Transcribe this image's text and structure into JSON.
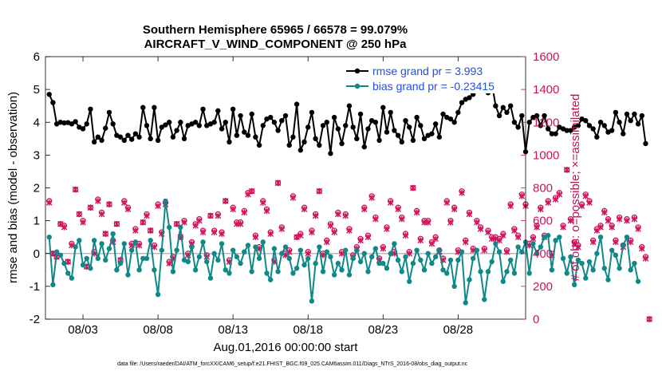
{
  "chart_data": {
    "type": "line",
    "title": "Southern Hemisphere 65965 / 66578 = 99.079%",
    "subtitle": "AIRCRAFT_V_WIND_COMPONENT @ 250 hPa",
    "xlabel": "Aug.01,2016 00:00:00 start",
    "ylabel": "rmse and bias (model - observation)",
    "y2label": "# of obs: o=possible; ×=assimilated",
    "xlim": [
      0.5,
      32.5
    ],
    "ylim": [
      -2,
      6
    ],
    "y2lim": [
      0,
      1600
    ],
    "x_ticks": [
      {
        "x": 3,
        "label": "08/03"
      },
      {
        "x": 8,
        "label": "08/08"
      },
      {
        "x": 13,
        "label": "08/13"
      },
      {
        "x": 18,
        "label": "08/18"
      },
      {
        "x": 23,
        "label": "08/23"
      },
      {
        "x": 28,
        "label": "08/28"
      }
    ],
    "y_ticks": [
      "-2",
      "-1",
      "0",
      "1",
      "2",
      "3",
      "4",
      "5",
      "6"
    ],
    "y2_ticks": [
      "0",
      "200",
      "400",
      "600",
      "800",
      "1000",
      "1200",
      "1400",
      "1600"
    ],
    "footnote": "data file: /Users/raeder/DAI/ATM_forcXX/CAM6_setup/f.e21.FHIST_BGC.f09_025.CAM6assim.011/Diags_NTrS_2016-08/obs_diag_output.nc",
    "colors": {
      "rmse": "#000000",
      "bias": "#108888",
      "obs": "#d0105a",
      "ylabel2": "#c0105a",
      "zero_line": "#b8b8b8",
      "legend_text": "#1f50e0"
    },
    "series": [
      {
        "name": "rmse",
        "legend": "rmse grand pr = 3.993",
        "values": [
          4.85,
          4.6,
          3.95,
          4.0,
          3.98,
          3.99,
          3.95,
          4.02,
          3.85,
          3.8,
          3.95,
          4.4,
          3.4,
          3.55,
          3.45,
          3.82,
          4.3,
          3.95,
          3.6,
          3.55,
          3.45,
          3.6,
          3.48,
          3.65,
          3.55,
          4.45,
          3.9,
          3.5,
          4.45,
          3.45,
          3.85,
          3.92,
          4.0,
          3.55,
          3.75,
          4.0,
          3.5,
          3.9,
          3.95,
          4.0,
          3.9,
          4.4,
          3.9,
          3.95,
          4.0,
          4.35,
          3.8,
          4.0,
          3.4,
          4.4,
          3.6,
          4.2,
          3.7,
          3.6,
          4.25,
          3.55,
          3.3,
          3.9,
          4.1,
          4.15,
          4.0,
          3.75,
          4.05,
          4.2,
          3.3,
          3.55,
          4.55,
          3.15,
          3.4,
          3.85,
          4.3,
          3.5,
          3.3,
          3.9,
          4.0,
          3.05,
          4.15,
          3.8,
          3.35,
          3.9,
          4.5,
          3.85,
          3.5,
          4.25,
          3.25,
          3.8,
          4.05,
          4.0,
          3.45,
          4.45,
          3.7,
          4.3,
          3.75,
          3.6,
          3.4,
          4.05,
          3.85,
          3.45,
          4.15,
          3.9,
          3.5,
          3.6,
          3.65,
          3.95,
          3.55,
          4.25,
          4.15,
          4.1,
          4.0,
          4.3,
          4.6,
          4.7,
          4.75,
          4.85,
          5.5,
          5.05,
          5.5,
          4.9,
          5.2,
          4.5,
          4.2,
          4.45,
          4.3,
          4.5,
          4.0,
          3.85,
          4.2,
          3.1,
          4.0,
          4.15,
          4.2,
          3.9,
          4.2,
          3.8,
          3.65,
          3.65,
          3.85,
          3.8,
          3.75,
          3.75,
          3.85,
          3.9,
          4.1,
          4.05,
          3.9,
          3.8,
          3.55,
          4.0,
          3.9,
          3.7,
          3.75,
          4.3,
          4.0,
          3.65,
          4.25,
          4.05,
          4.25,
          3.95,
          4.2,
          3.35
        ]
      },
      {
        "name": "bias",
        "legend": "bias grand pr = -0.23415",
        "values": [
          0.5,
          -0.95,
          0.05,
          -0.05,
          -0.3,
          -0.6,
          -0.75,
          0.2,
          0.4,
          -0.35,
          -0.15,
          -0.45,
          0.4,
          -0.15,
          0.3,
          -0.2,
          0.15,
          0.6,
          -0.5,
          -0.3,
          0.3,
          -0.65,
          0.1,
          0.35,
          -0.5,
          -0.15,
          -0.15,
          0.4,
          -0.5,
          -1.25,
          0.1,
          1.6,
          0.8,
          -0.55,
          0.1,
          0.8,
          -0.2,
          -0.25,
          0.2,
          -0.5,
          -0.1,
          0.35,
          -0.25,
          -0.75,
          0.0,
          -0.2,
          0.3,
          -0.5,
          -0.6,
          0.1,
          -0.1,
          -0.3,
          0.05,
          0.25,
          -0.55,
          0.2,
          -0.15,
          0.35,
          -0.6,
          -0.8,
          0.15,
          -0.55,
          0.0,
          0.2,
          -0.15,
          -0.6,
          -0.45,
          0.1,
          -0.35,
          -0.15,
          -1.45,
          -0.3,
          0.2,
          -0.55,
          0.05,
          -0.1,
          -0.65,
          -0.3,
          -0.5,
          0.1,
          -0.65,
          -0.15,
          0.1,
          -0.25,
          0.0,
          -0.55,
          -0.1,
          0.15,
          -0.3,
          -0.3,
          -0.45,
          0.0,
          0.3,
          -0.2,
          -0.55,
          -0.1,
          -0.85,
          -0.3,
          0.1,
          -0.2,
          -0.5,
          0.0,
          -0.3,
          -0.1,
          0.1,
          -0.5,
          -0.6,
          -0.2,
          -1.0,
          -0.2,
          0.05,
          -1.5,
          -0.8,
          -0.15,
          0.1,
          -0.55,
          -1.4,
          -0.55,
          -0.25,
          0.3,
          0.05,
          -0.85,
          -0.55,
          -0.2,
          -0.6,
          0.2,
          0.05,
          0.35,
          -0.6,
          0.3,
          0.0,
          0.2,
          0.5,
          0.55,
          -0.5,
          0.4,
          0.5,
          -0.15,
          -0.6,
          -0.1,
          -0.95,
          -0.2,
          -0.3,
          -0.75,
          -0.25,
          -0.5,
          0.0,
          0.5,
          -0.45,
          -0.8,
          0.1,
          -0.05,
          -0.45,
          0.25,
          0.5,
          -0.5,
          -0.3,
          -0.85
        ]
      },
      {
        "name": "obs_possible",
        "values": [
          720,
          400,
          380,
          580,
          570,
          350,
          460,
          790,
          640,
          600,
          320,
          680,
          410,
          730,
          650,
          520,
          700,
          480,
          580,
          360,
          720,
          680,
          460,
          550,
          460,
          590,
          640,
          540,
          450,
          700,
          530,
          710,
          350,
          380,
          580,
          500,
          600,
          400,
          470,
          580,
          610,
          540,
          390,
          630,
          540,
          640,
          530,
          720,
          360,
          680,
          590,
          590,
          660,
          770,
          780,
          510,
          440,
          720,
          670,
          530,
          360,
          830,
          560,
          400,
          420,
          750,
          500,
          520,
          680,
          410,
          540,
          640,
          780,
          400,
          480,
          580,
          540,
          650,
          410,
          640,
          550,
          390,
          440,
          490,
          680,
          510,
          750,
          620,
          370,
          440,
          560,
          720,
          410,
          680,
          620,
          520,
          410,
          800,
          660,
          490,
          600,
          600,
          470,
          500,
          420,
          370,
          720,
          600,
          680,
          420,
          780,
          480,
          650,
          430,
          600,
          560,
          430,
          540,
          500,
          500,
          490,
          520,
          420,
          700,
          550,
          510,
          760,
          700,
          460,
          500,
          570,
          680,
          510,
          720,
          400,
          740,
          770,
          570,
          910,
          610,
          470,
          450,
          700,
          760,
          720,
          480,
          550,
          570,
          660,
          610,
          570,
          480,
          620,
          450,
          610,
          480,
          620,
          560,
          440,
          380,
          0
        ]
      },
      {
        "name": "obs_assimilated",
        "values": [
          710,
          400,
          380,
          580,
          560,
          350,
          450,
          790,
          640,
          590,
          320,
          680,
          400,
          720,
          640,
          520,
          700,
          470,
          580,
          360,
          710,
          670,
          450,
          540,
          450,
          590,
          630,
          540,
          440,
          690,
          520,
          700,
          340,
          370,
          580,
          500,
          590,
          390,
          460,
          570,
          600,
          530,
          380,
          630,
          530,
          630,
          520,
          720,
          350,
          670,
          580,
          580,
          650,
          760,
          780,
          500,
          430,
          710,
          660,
          520,
          350,
          830,
          550,
          390,
          410,
          740,
          500,
          510,
          670,
          400,
          530,
          630,
          780,
          390,
          470,
          570,
          530,
          640,
          400,
          630,
          540,
          380,
          430,
          480,
          670,
          500,
          740,
          610,
          360,
          430,
          550,
          710,
          400,
          670,
          610,
          510,
          400,
          800,
          650,
          480,
          590,
          590,
          460,
          490,
          410,
          360,
          710,
          590,
          670,
          410,
          770,
          470,
          640,
          420,
          590,
          550,
          420,
          530,
          490,
          490,
          480,
          510,
          410,
          690,
          540,
          500,
          750,
          690,
          450,
          490,
          560,
          670,
          500,
          710,
          390,
          730,
          760,
          560,
          910,
          600,
          460,
          440,
          690,
          750,
          710,
          470,
          540,
          560,
          650,
          600,
          560,
          470,
          610,
          440,
          600,
          470,
          610,
          550,
          430,
          370,
          0
        ]
      }
    ]
  }
}
